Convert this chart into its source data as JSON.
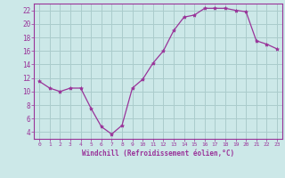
{
  "x": [
    0,
    1,
    2,
    3,
    4,
    5,
    6,
    7,
    8,
    9,
    10,
    11,
    12,
    13,
    14,
    15,
    16,
    17,
    18,
    19,
    20,
    21,
    22,
    23
  ],
  "y": [
    11.5,
    10.5,
    10.0,
    10.5,
    10.5,
    7.5,
    4.8,
    3.7,
    5.0,
    10.5,
    11.8,
    14.2,
    16.0,
    19.0,
    21.0,
    21.3,
    22.3,
    22.3,
    22.3,
    22.0,
    21.8,
    17.5,
    17.0,
    16.3
  ],
  "line_color": "#993399",
  "marker": "*",
  "marker_size": 3,
  "bg_color": "#cce8e8",
  "grid_color": "#aacccc",
  "xlabel": "Windchill (Refroidissement éolien,°C)",
  "xlabel_color": "#993399",
  "tick_color": "#993399",
  "yticks": [
    4,
    6,
    8,
    10,
    12,
    14,
    16,
    18,
    20,
    22
  ],
  "xticks": [
    0,
    1,
    2,
    3,
    4,
    5,
    6,
    7,
    8,
    9,
    10,
    11,
    12,
    13,
    14,
    15,
    16,
    17,
    18,
    19,
    20,
    21,
    22,
    23
  ],
  "ylim": [
    3.0,
    23.0
  ],
  "xlim": [
    -0.5,
    23.5
  ]
}
